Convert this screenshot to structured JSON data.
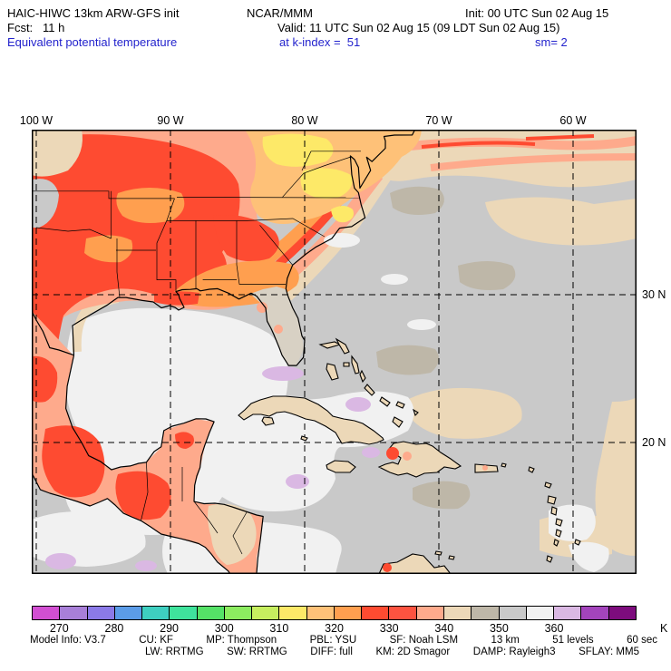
{
  "header": {
    "line1": {
      "left": "HAIC-HIWC 13km ARW-GFS init",
      "center": "NCAR/MMM",
      "right": "Init: 00 UTC Sun 02 Aug 15"
    },
    "line2": {
      "left": "Fcst:   11 h",
      "center": "Valid: 11 UTC Sun 02 Aug 15 (09 LDT Sun 02 Aug 15)"
    },
    "line3": {
      "left": "Equivalent potential temperature",
      "center": "at k-index =  51",
      "right": "sm= 2"
    }
  },
  "map": {
    "x_axis_labels": [
      "100 W",
      "90 W",
      "80 W",
      "70 W",
      "60 W"
    ],
    "y_axis_labels": [
      "30 N",
      "20 N"
    ]
  },
  "colorbar": {
    "unit": "K",
    "start_value": 265,
    "step": 5,
    "tick_labels": [
      "270",
      "280",
      "290",
      "300",
      "310",
      "320",
      "330",
      "340",
      "350",
      "360"
    ],
    "colors": [
      "#d24fd2",
      "#a87fd8",
      "#8b7ae8",
      "#5b9ce8",
      "#3ecfc0",
      "#3fe39c",
      "#55e267",
      "#8cec60",
      "#c6ee5f",
      "#fde968",
      "#fec178",
      "#ff9f4f",
      "#fe4b31",
      "#fd5340",
      "#feaa8c",
      "#ecd8b8",
      "#beb7a8",
      "#c9c9c9",
      "#f1f1f1",
      "#dab8e3",
      "#a344bc",
      "#7d0c7d"
    ]
  },
  "footer": {
    "line1": [
      "Model Info: V3.7",
      "CU: KF",
      "MP: Thompson",
      "PBL: YSU",
      "SF: Noah LSM",
      "13 km",
      "51 levels",
      "60 sec"
    ],
    "line2": [
      "LW: RRTMG",
      "SW: RRTMG",
      "DIFF: full",
      "KM: 2D Smagor",
      "DAMP: Rayleigh3",
      "SFLAY: MM5"
    ]
  }
}
